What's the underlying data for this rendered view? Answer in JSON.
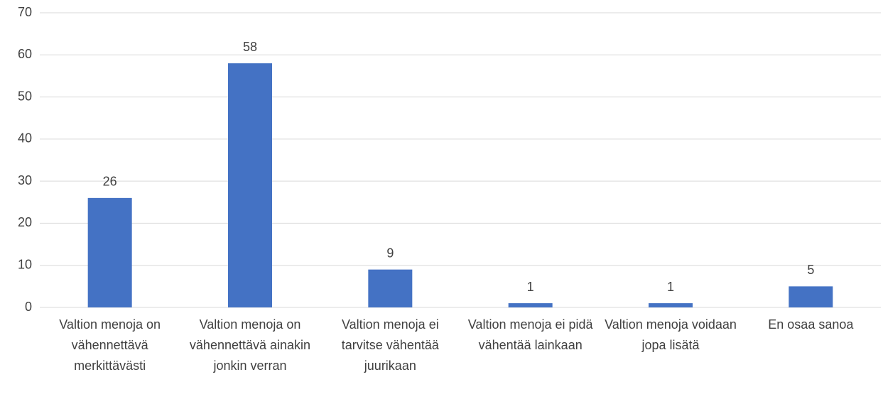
{
  "chart_data": {
    "type": "bar",
    "categories": [
      "Valtion menoja on vähennettävä merkittävästi",
      "Valtion menoja on vähennettävä ainakin jonkin verran",
      "Valtion menoja ei tarvitse vähentää juurikaan",
      "Valtion menoja ei pidä vähentää lainkaan",
      "Valtion menoja voidaan jopa lisätä",
      "En osaa sanoa"
    ],
    "values": [
      26,
      58,
      9,
      1,
      1,
      5
    ],
    "color": "#4472c4",
    "ylim": [
      0,
      70
    ],
    "yticks": [
      0,
      10,
      20,
      30,
      40,
      50,
      60,
      70
    ],
    "grid": true
  }
}
